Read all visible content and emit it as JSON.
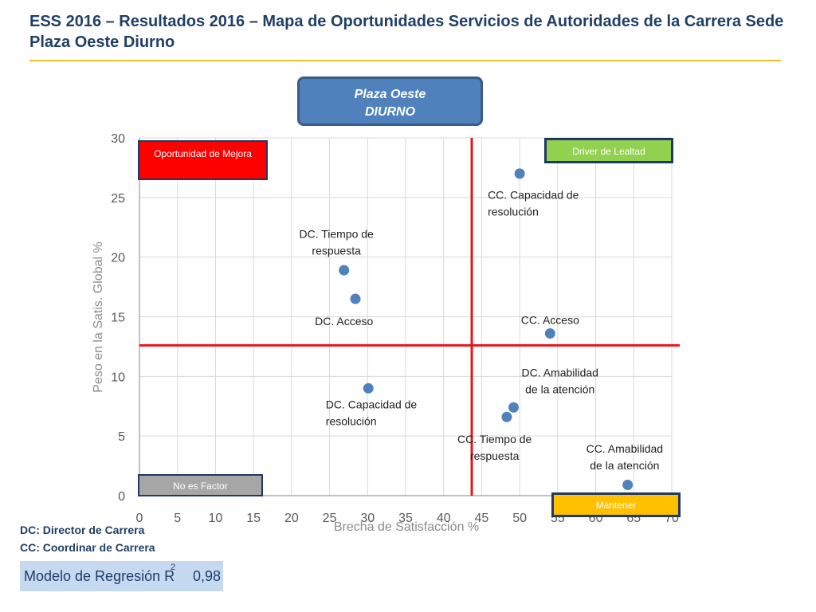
{
  "title": "ESS 2016 – Resultados 2016 – Mapa de Oportunidades Servicios de Autoridades de la Carrera Sede Plaza Oeste Diurno",
  "header_box": {
    "line1": "Plaza Oeste",
    "line2": "DIURNO"
  },
  "quadrants": {
    "top_left": "Oportunidad de Mejora",
    "top_right": "Driver de Lealtad",
    "bottom_left": "No es Factor",
    "bottom_right": "Mantener"
  },
  "legend": {
    "dc": "DC: Director de Carrera",
    "cc": "CC: Coordinar de Carrera"
  },
  "model": {
    "label": "Modelo de Regresión R",
    "superscript": "2",
    "value": "0,98"
  },
  "colors": {
    "title": "#1f3f67",
    "accent_line": "#f2c22a",
    "points": "#4f81bd",
    "threshold_lines": "#e8141e",
    "quad_red": "#ff0000",
    "quad_green": "#92d050",
    "quad_gray": "#a6a6a6",
    "quad_yellow": "#ffc000"
  },
  "chart_data": {
    "type": "scatter",
    "xlabel": "Brecha de Satisfacción %",
    "ylabel": "Peso en la Satis. Global %",
    "xlim": [
      0,
      70
    ],
    "ylim": [
      0,
      30
    ],
    "xticks": [
      0,
      5,
      10,
      15,
      20,
      25,
      30,
      35,
      40,
      45,
      50,
      55,
      60,
      65,
      70
    ],
    "yticks": [
      0,
      5,
      10,
      15,
      20,
      25,
      30
    ],
    "grid": true,
    "thresholds": {
      "x": 43.7,
      "y": 12.6
    },
    "points": [
      {
        "label": [
          "CC. Capacidad de",
          "resolución"
        ],
        "x": 50.0,
        "y": 27.0,
        "anchor": "start",
        "lx": 45.8,
        "ly": 24.9
      },
      {
        "label": [
          "DC. Tiempo de",
          "respuesta"
        ],
        "x": 26.9,
        "y": 18.9,
        "anchor": "middle",
        "lx": 25.9,
        "ly": 21.6
      },
      {
        "label": [
          "DC. Acceso"
        ],
        "x": 28.4,
        "y": 16.5,
        "anchor": "middle",
        "lx": 26.9,
        "ly": 14.3
      },
      {
        "label": [
          "CC. Acceso"
        ],
        "x": 54.0,
        "y": 13.6,
        "anchor": "middle",
        "lx": 54.0,
        "ly": 14.4
      },
      {
        "label": [
          "DC. Capacidad de",
          "resolución"
        ],
        "x": 30.1,
        "y": 9.0,
        "anchor": "start",
        "lx": 24.5,
        "ly": 7.3
      },
      {
        "label": [
          "DC. Amabilidad",
          "de la atención"
        ],
        "x": 49.2,
        "y": 7.4,
        "anchor": "middle",
        "lx": 55.3,
        "ly": 10.0
      },
      {
        "label": [
          "CC. Tiempo de",
          "respuesta"
        ],
        "x": 48.3,
        "y": 6.6,
        "anchor": "middle",
        "lx": 46.7,
        "ly": 4.4
      },
      {
        "label": [
          "CC. Amabilidad",
          "de la atención"
        ],
        "x": 64.2,
        "y": 0.9,
        "anchor": "middle",
        "lx": 63.8,
        "ly": 3.6
      }
    ]
  }
}
